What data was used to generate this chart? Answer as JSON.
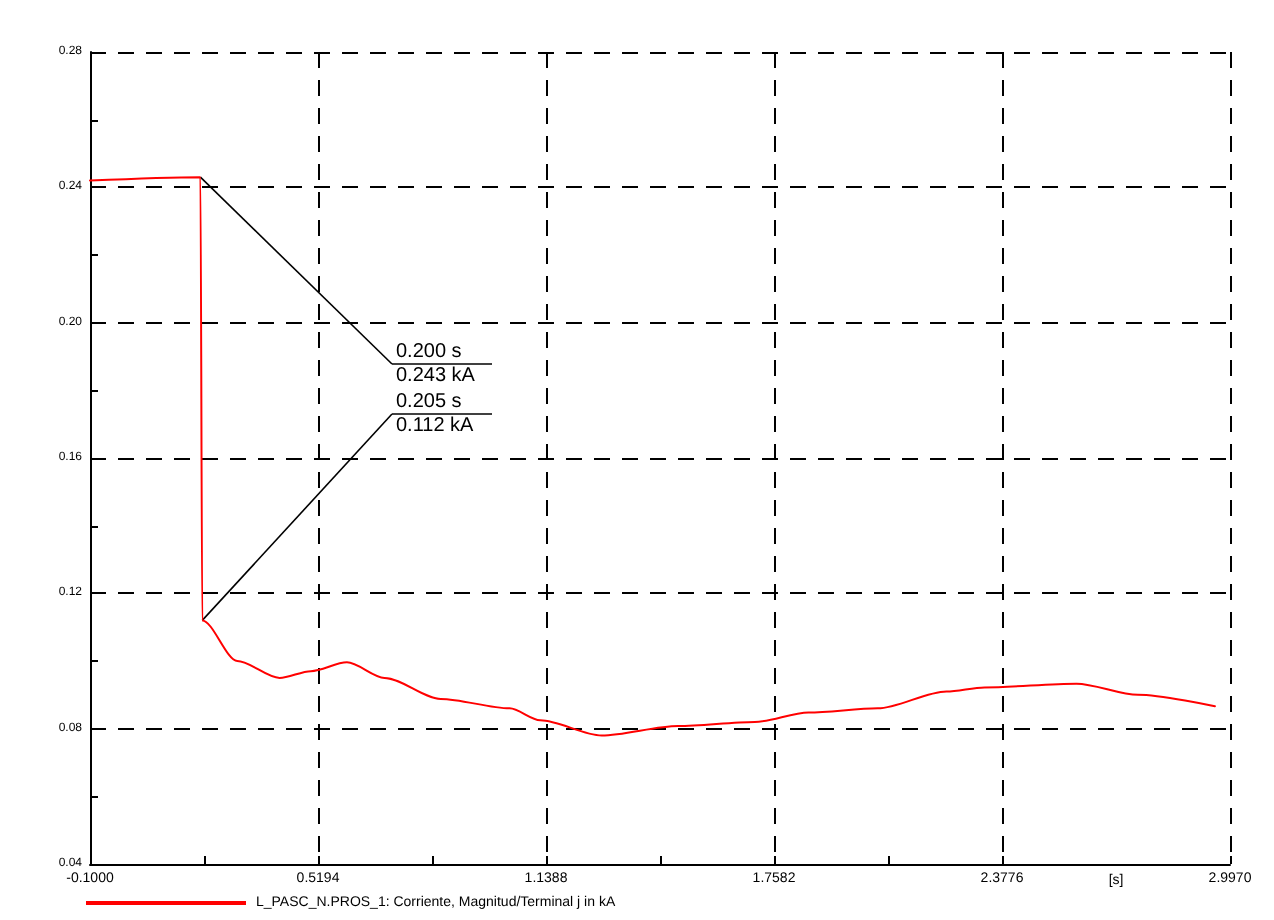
{
  "chart_data": {
    "type": "line",
    "xlabel": "[s]",
    "x": [
      -0.1,
      0.2,
      0.205,
      0.3,
      0.415,
      0.5,
      0.598,
      0.7,
      0.853,
      1.04,
      1.123,
      1.29,
      1.498,
      1.706,
      1.852,
      2.04,
      2.227,
      2.33,
      2.58,
      2.747,
      2.956
    ],
    "series": [
      {
        "name": "L_PASC_N.PROS_1: Corriente, Magnitud/Terminal j in kA",
        "color": "#ff0000",
        "values": [
          0.242,
          0.243,
          0.112,
          0.1,
          0.095,
          0.097,
          0.0996,
          0.095,
          0.0888,
          0.086,
          0.0825,
          0.078,
          0.0808,
          0.082,
          0.0848,
          0.086,
          0.091,
          0.0922,
          0.0933,
          0.09,
          0.0866
        ]
      }
    ],
    "xlim": [
      -0.1,
      2.997
    ],
    "xticks": [
      {
        "value": -0.1,
        "label": "-0.1000"
      },
      {
        "value": 0.2097,
        "label": null
      },
      {
        "value": 0.5194,
        "label": "0.5194"
      },
      {
        "value": 0.8291,
        "label": null
      },
      {
        "value": 1.1388,
        "label": "1.1388"
      },
      {
        "value": 1.4485,
        "label": null
      },
      {
        "value": 1.7582,
        "label": "1.7582"
      },
      {
        "value": 2.0679,
        "label": null
      },
      {
        "value": 2.3776,
        "label": "2.3776"
      },
      {
        "value": 2.997,
        "label": "2.9970"
      }
    ],
    "ylim": [
      0.04,
      0.28
    ],
    "yticks": [
      {
        "value": 0.04,
        "label": "0.04"
      },
      {
        "value": 0.06,
        "label": null
      },
      {
        "value": 0.08,
        "label": "0.08"
      },
      {
        "value": 0.1,
        "label": null
      },
      {
        "value": 0.12,
        "label": "0.12"
      },
      {
        "value": 0.14,
        "label": null
      },
      {
        "value": 0.16,
        "label": "0.16"
      },
      {
        "value": 0.18,
        "label": null
      },
      {
        "value": 0.2,
        "label": "0.20"
      },
      {
        "value": 0.22,
        "label": null
      },
      {
        "value": 0.24,
        "label": "0.24"
      },
      {
        "value": 0.26,
        "label": null
      },
      {
        "value": 0.28,
        "label": "0.28"
      }
    ],
    "grid": true,
    "legend": "bottom left",
    "marker": "none",
    "line_style": "solid",
    "annotations": [
      {
        "text": "0.200 s\n0.243 kA",
        "x": 0.2,
        "y": 0.243
      },
      {
        "text": "0.205 s\n0.112 kA",
        "x": 0.205,
        "y": 0.112
      }
    ]
  }
}
